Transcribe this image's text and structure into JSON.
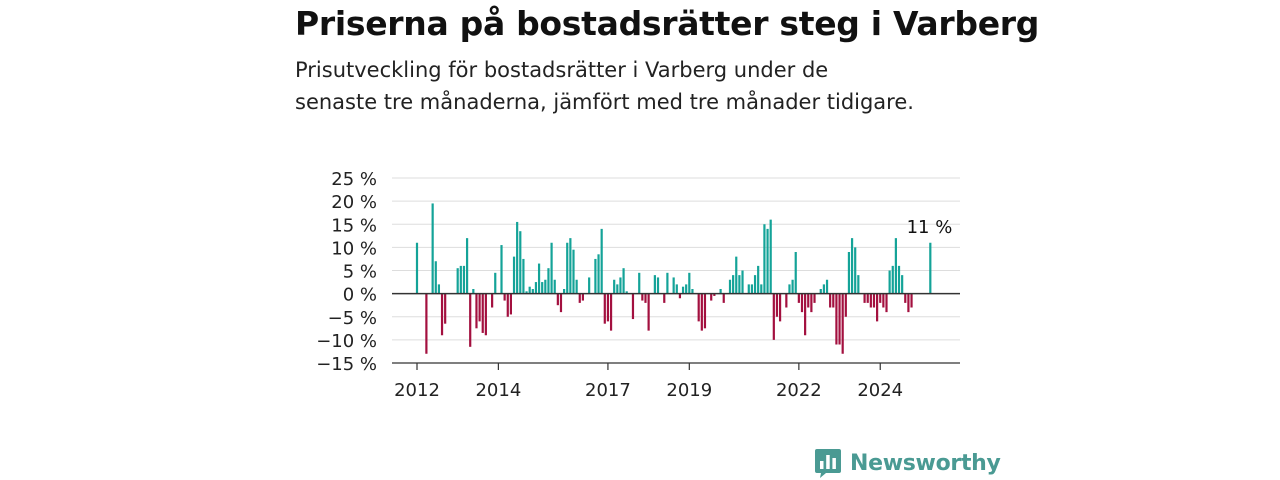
{
  "title": "Priserna på bostadsrätter steg i Varberg",
  "subtitle": "Prisutveckling för bostadsrätter i Varberg under de senaste tre månaderna, jämfört med tre månader tidigare.",
  "logo_text": "Newsworthy",
  "colors": {
    "positive": "#14a398",
    "negative": "#a3103f",
    "grid": "#dddddd",
    "axis": "#333333",
    "text": "#222222",
    "brand": "#4a9a93"
  },
  "chart_data": {
    "type": "bar",
    "title": "",
    "xlabel": "",
    "ylabel": "",
    "ylim": [
      -15,
      25
    ],
    "yticks": [
      -15,
      -10,
      -5,
      0,
      5,
      10,
      15,
      20,
      25
    ],
    "ytick_labels": [
      "−15 %",
      "−10 %",
      "−5 %",
      "0 %",
      "5 %",
      "10 %",
      "15 %",
      "20 %",
      "25 %"
    ],
    "xtick_labels": [
      "2012",
      "2014",
      "2017",
      "2019",
      "2022",
      "2024"
    ],
    "xtick_positions": [
      0,
      26,
      61,
      87,
      122,
      148
    ],
    "annotation": {
      "text": "11 %",
      "index": 164
    },
    "grid": true,
    "legend": "none",
    "values": [
      11,
      0,
      0,
      -13,
      0,
      19.5,
      7,
      2,
      -9,
      -6.5,
      0,
      0,
      0,
      5.5,
      6,
      6,
      12,
      -11.5,
      1,
      -7.5,
      -6,
      -8.5,
      -9,
      0,
      -3,
      4.5,
      0,
      10.5,
      -1.5,
      -5,
      -4.5,
      8,
      15.5,
      13.5,
      7.5,
      0.5,
      1.5,
      1,
      2.5,
      6.5,
      2.5,
      3,
      5.5,
      11,
      3,
      -2.5,
      -4,
      1,
      11,
      12,
      9.5,
      3,
      -2,
      -1.5,
      0,
      3.5,
      0,
      7.5,
      8.5,
      14,
      -6.5,
      -6,
      -8,
      3,
      2,
      3.5,
      5.5,
      0.5,
      0,
      -5.5,
      0,
      4.5,
      -1.5,
      -2,
      -8,
      0,
      4,
      3.5,
      0,
      -2,
      4.5,
      0,
      3.5,
      2,
      -1,
      1.5,
      2,
      4.5,
      1,
      0,
      -6,
      -8,
      -7.5,
      0,
      -1.5,
      -0.5,
      0,
      1,
      -2,
      0,
      3,
      4,
      8,
      4,
      5,
      0,
      2,
      2,
      4,
      6,
      2,
      15,
      14,
      16,
      -10,
      -5,
      -6,
      0,
      -3,
      2,
      3,
      9,
      -2,
      -4,
      -9,
      -3,
      -4,
      -2,
      0,
      1,
      2,
      3,
      -3,
      -3,
      -11,
      -11,
      -13,
      -5,
      9,
      12,
      10,
      4,
      0,
      -2,
      -2,
      -3,
      -3,
      -6,
      -2,
      -3,
      -4,
      5,
      6,
      12,
      6,
      4,
      -2,
      -4,
      -3,
      0,
      0,
      0,
      0,
      0,
      11
    ]
  }
}
